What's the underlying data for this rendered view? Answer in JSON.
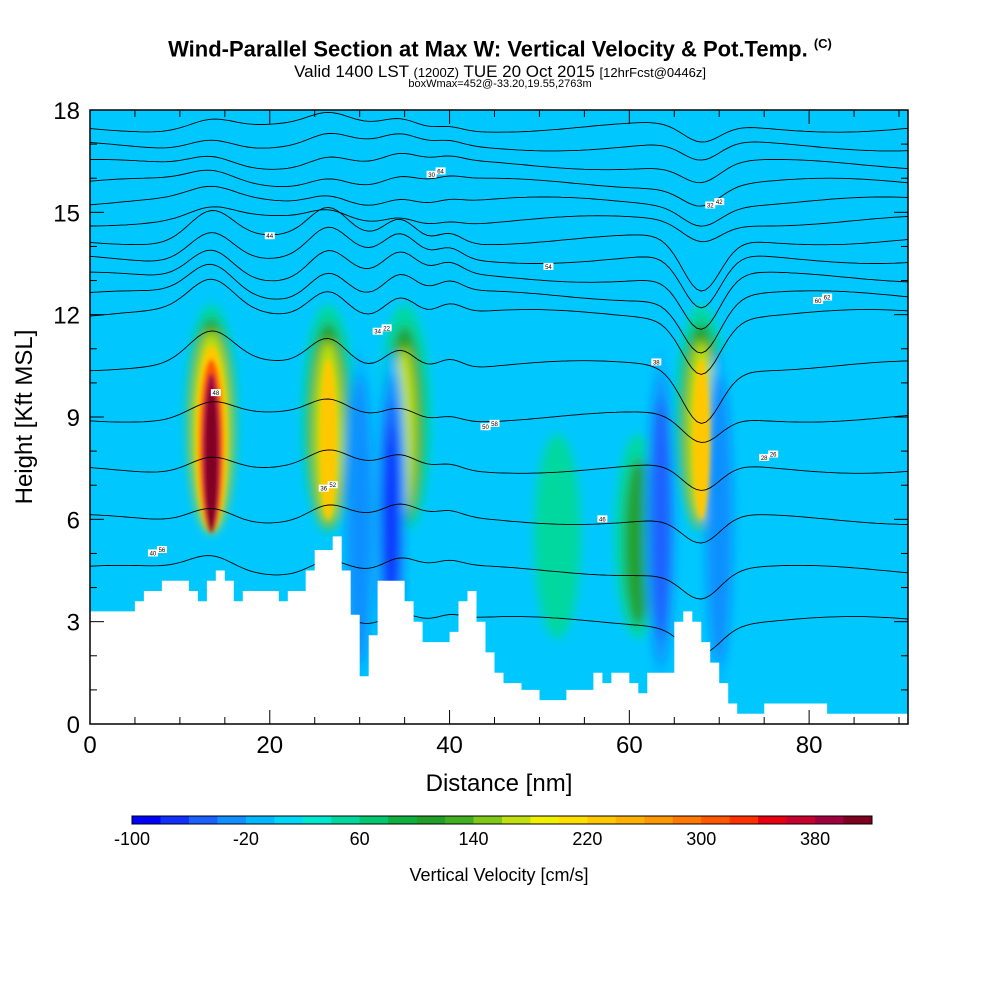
{
  "header": {
    "title": "Wind-Parallel Section at Max W: Vertical Velocity & Pot.Temp.",
    "title_unit": "(C)",
    "valid_prefix": "Valid 1400 LST",
    "valid_zulu": "(1200Z)",
    "valid_date": "TUE 20 Oct 2015",
    "forecast": "[12hrFcst@0446z]",
    "boxline": "boxWmax=452@-33.20,19.55,2763m"
  },
  "chart_data": {
    "type": "heatmap",
    "xlabel": "Distance [nm]",
    "ylabel": "Height [Kft MSL]",
    "xlim": [
      0,
      91
    ],
    "ylim": [
      0,
      18
    ],
    "x_ticks": [
      0,
      20,
      40,
      60,
      80
    ],
    "y_ticks": [
      0,
      3,
      6,
      9,
      12,
      15,
      18
    ],
    "colorbar": {
      "label": "Vertical Velocity [cm/s]",
      "min": -100,
      "max": 420,
      "step": 20,
      "tick_labels": [
        "-100",
        "-20",
        "60",
        "140",
        "220",
        "300",
        "380"
      ],
      "colors": [
        "#0000ff",
        "#1030ff",
        "#1a60ff",
        "#1090ff",
        "#00b8ff",
        "#00d8f8",
        "#00e8d0",
        "#00d8a0",
        "#00c870",
        "#10b040",
        "#20a028",
        "#40b020",
        "#80c818",
        "#c0e010",
        "#f0f000",
        "#ffe000",
        "#ffc800",
        "#ffb000",
        "#ff9800",
        "#ff7800",
        "#ff5800",
        "#ff3000",
        "#e80010",
        "#c80030",
        "#a00040",
        "#800020"
      ]
    },
    "max_w_cms": 452,
    "updrafts": [
      {
        "x": 13.5,
        "w_max": 450
      },
      {
        "x": 26.5,
        "w_max": 260
      },
      {
        "x": 35,
        "w_max": 190
      },
      {
        "x": 68,
        "w_max": 230
      },
      {
        "x": 52,
        "w_max": 90
      },
      {
        "x": 61,
        "w_max": 100
      }
    ],
    "downdrafts": [
      {
        "x": 30,
        "w_min": -40
      },
      {
        "x": 33.5,
        "w_min": -80
      },
      {
        "x": 63.5,
        "w_min": -60
      },
      {
        "x": 70,
        "w_min": -50
      }
    ],
    "terrain": {
      "x": [
        0,
        5,
        6,
        8,
        11,
        12,
        13,
        14,
        15,
        16,
        17,
        18,
        21,
        22,
        24,
        25,
        27,
        28,
        29,
        30,
        31,
        32,
        34,
        35,
        36,
        37,
        38,
        40,
        41,
        42,
        43,
        44,
        45,
        46,
        48,
        50,
        51,
        53,
        55,
        56,
        57,
        58,
        59,
        60,
        61,
        62,
        64,
        65,
        66,
        67,
        68,
        69,
        70,
        71,
        72,
        73,
        74,
        75,
        77,
        78,
        81,
        82,
        84,
        86,
        91
      ],
      "y": [
        3.3,
        3.6,
        3.9,
        4.2,
        3.9,
        3.6,
        4.2,
        4.5,
        4.2,
        3.6,
        3.9,
        3.9,
        3.6,
        3.9,
        4.5,
        5.1,
        5.5,
        4.5,
        3.2,
        1.4,
        2.6,
        4.2,
        4.2,
        3.6,
        3.0,
        2.4,
        2.4,
        2.7,
        3.6,
        3.9,
        3.0,
        2.1,
        1.5,
        1.2,
        1.0,
        0.7,
        0.7,
        1.0,
        1.0,
        1.5,
        1.2,
        1.5,
        1.5,
        1.2,
        0.9,
        1.5,
        1.5,
        3.0,
        3.3,
        3.0,
        2.4,
        1.8,
        1.2,
        0.6,
        0.3,
        0.3,
        0.3,
        0.6,
        0.6,
        0.6,
        0.6,
        0.3,
        0.3,
        0.3,
        0.3
      ]
    },
    "isentrope_labels": [
      "40",
      "50",
      "60",
      "30",
      "28",
      "34",
      "32",
      "36",
      "38",
      "44",
      "46",
      "48",
      "54",
      "56",
      "58",
      "62",
      "64",
      "26",
      "22",
      "42",
      "52"
    ]
  }
}
